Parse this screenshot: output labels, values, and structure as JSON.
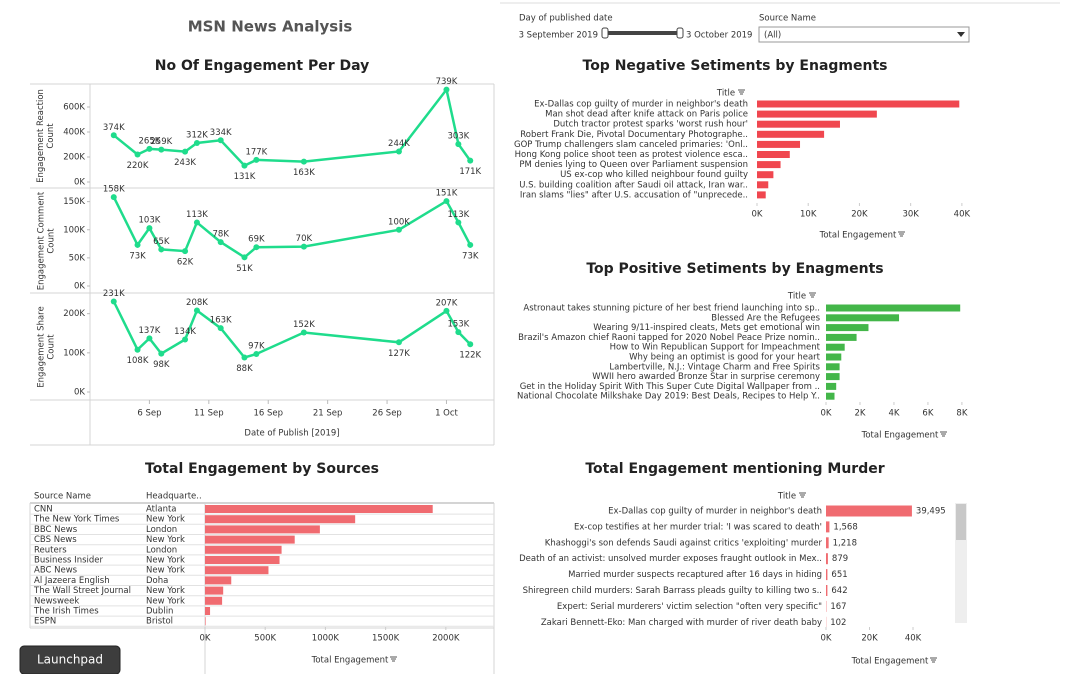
{
  "header": {
    "title": "MSN News Analysis"
  },
  "filters": {
    "date": {
      "label": "Day of published date",
      "start": "3 September 2019",
      "end": "3 October 2019"
    },
    "source": {
      "label": "Source Name",
      "value": "(All)"
    }
  },
  "launchpad": "Launchpad",
  "chart_data": [
    {
      "type": "line",
      "title": "No Of Engagement Per Day",
      "xlabel": "Date of Publish [2019]",
      "color": "#1fdc8c",
      "x": [
        "2019-09-03",
        "2019-09-05",
        "2019-09-06",
        "2019-09-07",
        "2019-09-09",
        "2019-09-10",
        "2019-09-12",
        "2019-09-14",
        "2019-09-15",
        "2019-09-19",
        "2019-09-27",
        "2019-10-01",
        "2019-10-02",
        "2019-10-03"
      ],
      "xlim": [
        "2019-09-01",
        "2019-10-05"
      ],
      "xticks": [
        {
          "value": "2019-09-06",
          "label": "6 Sep"
        },
        {
          "value": "2019-09-11",
          "label": "11 Sep"
        },
        {
          "value": "2019-09-16",
          "label": "16 Sep"
        },
        {
          "value": "2019-09-21",
          "label": "21 Sep"
        },
        {
          "value": "2019-09-26",
          "label": "26 Sep"
        },
        {
          "value": "2019-10-01",
          "label": "1 Oct"
        }
      ],
      "panels": [
        {
          "ylabel": "Engagement Reaction Count",
          "ylim": [
            0,
            760000
          ],
          "yticks": [
            {
              "value": 0,
              "label": "0K"
            },
            {
              "value": 200000,
              "label": "200K"
            },
            {
              "value": 400000,
              "label": "400K"
            },
            {
              "value": 600000,
              "label": "600K"
            }
          ],
          "values": [
            374000,
            220000,
            265000,
            259000,
            243000,
            312000,
            334000,
            131000,
            177000,
            163000,
            244000,
            739000,
            303000,
            171000
          ],
          "value_labels": [
            "374K",
            "220K",
            "265K",
            "259K",
            "243K",
            "312K",
            "334K",
            "131K",
            "177K",
            "163K",
            "244K",
            "739K",
            "303K",
            "171K"
          ]
        },
        {
          "ylabel": "Engagement Comment Count",
          "ylim": [
            0,
            160000
          ],
          "yticks": [
            {
              "value": 0,
              "label": "0K"
            },
            {
              "value": 50000,
              "label": "50K"
            },
            {
              "value": 100000,
              "label": "100K"
            },
            {
              "value": 150000,
              "label": "150K"
            }
          ],
          "values": [
            158000,
            73000,
            103000,
            65000,
            62000,
            113000,
            78000,
            51000,
            69000,
            70000,
            100000,
            151000,
            113000,
            73000
          ],
          "value_labels": [
            "158K",
            "73K",
            "103K",
            "65K",
            "62K",
            "113K",
            "78K",
            "51K",
            "69K",
            "70K",
            "100K",
            "151K",
            "113K",
            "73K"
          ]
        },
        {
          "ylabel": "Engagement Share Count",
          "ylim": [
            0,
            240000
          ],
          "yticks": [
            {
              "value": 0,
              "label": "0K"
            },
            {
              "value": 100000,
              "label": "100K"
            },
            {
              "value": 200000,
              "label": "200K"
            }
          ],
          "values": [
            231000,
            108000,
            137000,
            98000,
            134000,
            208000,
            163000,
            88000,
            97000,
            152000,
            127000,
            207000,
            153000,
            122000
          ],
          "value_labels": [
            "231K",
            "108K",
            "137K",
            "98K",
            "134K",
            "208K",
            "163K",
            "88K",
            "97K",
            "152K",
            "127K",
            "207K",
            "153K",
            "122K"
          ]
        }
      ]
    },
    {
      "type": "bar",
      "orientation": "horizontal",
      "title": "Top Negative Setiments by Enagments",
      "column_header": "Title",
      "xlabel": "Total Engagement",
      "color": "#f0474f",
      "categories": [
        "Ex-Dallas cop guilty of murder in neighbor's death",
        "Man shot dead after knife attack on Paris police",
        "Dutch tractor protest sparks 'worst rush hour'",
        "Robert Frank Die, Pivotal Documentary Photographe..",
        "GOP Trump challengers slam canceled primaries: 'Onl..",
        "Hong Kong police shoot teen as protest violence esca..",
        "PM denies lying to Queen over Parliament suspension",
        "US ex-cop who killed neighbour found guilty",
        "U.S. building coalition after Saudi oil attack, Iran war..",
        "Iran slams \"lies\" after U.S. accusation of \"unprecede.."
      ],
      "values": [
        39495,
        23400,
        16200,
        13100,
        8400,
        6400,
        4600,
        3200,
        2200,
        1700
      ],
      "xlim": [
        0,
        41000
      ],
      "xticks": [
        {
          "value": 0,
          "label": "0K"
        },
        {
          "value": 10000,
          "label": "10K"
        },
        {
          "value": 20000,
          "label": "20K"
        },
        {
          "value": 30000,
          "label": "30K"
        },
        {
          "value": 40000,
          "label": "40K"
        }
      ]
    },
    {
      "type": "bar",
      "orientation": "horizontal",
      "title": "Top Positive Setiments by Enagments",
      "column_header": "Title",
      "xlabel": "Total Engagement",
      "color": "#43b649",
      "categories": [
        "Astronaut takes stunning picture of her best friend launching into sp..",
        "Blessed Are the Refugees",
        "Wearing 9/11-inspired cleats, Mets get emotional win",
        "Brazil's Amazon chief Raoni tapped for 2020 Nobel Peace Prize nomin..",
        "How to Win Republican Support for Impeachment",
        "Why being an optimist is good for your heart",
        "Lambertville, N.J.: Vintage Charm and Free Spirits",
        "WWII hero awarded Bronze Star in surprise ceremony",
        "Get in the Holiday Spirit With This Super Cute Digital Wallpaper from ..",
        "National Chocolate Milkshake Day 2019: Best Deals, Recipes to Help Y.."
      ],
      "values": [
        7900,
        4300,
        2500,
        1800,
        1100,
        900,
        800,
        800,
        600,
        500
      ],
      "xlim": [
        0,
        8300
      ],
      "xticks": [
        {
          "value": 0,
          "label": "0K"
        },
        {
          "value": 2000,
          "label": "2K"
        },
        {
          "value": 4000,
          "label": "4K"
        },
        {
          "value": 6000,
          "label": "6K"
        },
        {
          "value": 8000,
          "label": "8K"
        }
      ]
    },
    {
      "type": "bar",
      "orientation": "horizontal",
      "title": "Total Engagement by Sources",
      "columns": [
        "Source Name",
        "Headquarte.."
      ],
      "xlabel": "Total Engagement",
      "color": "#f06b70",
      "categories": [
        "CNN",
        "The New York Times",
        "BBC News",
        "CBS News",
        "Reuters",
        "Business Insider",
        "ABC News",
        "Al Jazeera English",
        "The Wall Street Journal",
        "Newsweek",
        "The Irish Times",
        "ESPN"
      ],
      "headquarters": [
        "Atlanta",
        "New York",
        "London",
        "New York",
        "London",
        "New York",
        "New York",
        "Doha",
        "New York",
        "New York",
        "Dublin",
        "Bristol"
      ],
      "values": [
        1891000,
        1247000,
        954000,
        745000,
        636000,
        619000,
        527000,
        218000,
        151000,
        142000,
        42000,
        5000
      ],
      "xlim": [
        0,
        2400000
      ],
      "xticks": [
        {
          "value": 0,
          "label": "0K"
        },
        {
          "value": 500000,
          "label": "500K"
        },
        {
          "value": 1000000,
          "label": "1000K"
        },
        {
          "value": 1500000,
          "label": "1500K"
        },
        {
          "value": 2000000,
          "label": "2000K"
        }
      ]
    },
    {
      "type": "bar",
      "orientation": "horizontal",
      "title": "Total Engagement mentioning Murder",
      "column_header": "Title",
      "xlabel": "Total Engagement",
      "color": "#f06b70",
      "categories": [
        "Ex-Dallas cop guilty of murder in neighbor's death",
        "Ex-cop testifies at her murder trial: 'I was scared to death'",
        "Khashoggi's son defends Saudi against critics 'exploiting' murder",
        "Death of an activist: unsolved murder exposes fraught outlook in Mex..",
        "Married murder suspects recaptured after 16 days in hiding",
        "Shiregreen child murders: Sarah Barrass pleads guilty to killing two s..",
        "Expert: Serial murderers' victim selection \"often very specific\"",
        "Zakari Bennett-Eko: Man charged with murder of river death baby"
      ],
      "values": [
        39495,
        1568,
        1218,
        879,
        651,
        642,
        167,
        102
      ],
      "value_labels": [
        "39,495",
        "1,568",
        "1,218",
        "879",
        "651",
        "642",
        "167",
        "102"
      ],
      "xlim": [
        0,
        57000
      ],
      "xticks": [
        {
          "value": 0,
          "label": "0K"
        },
        {
          "value": 20000,
          "label": "20K"
        },
        {
          "value": 40000,
          "label": "40K"
        }
      ]
    }
  ]
}
